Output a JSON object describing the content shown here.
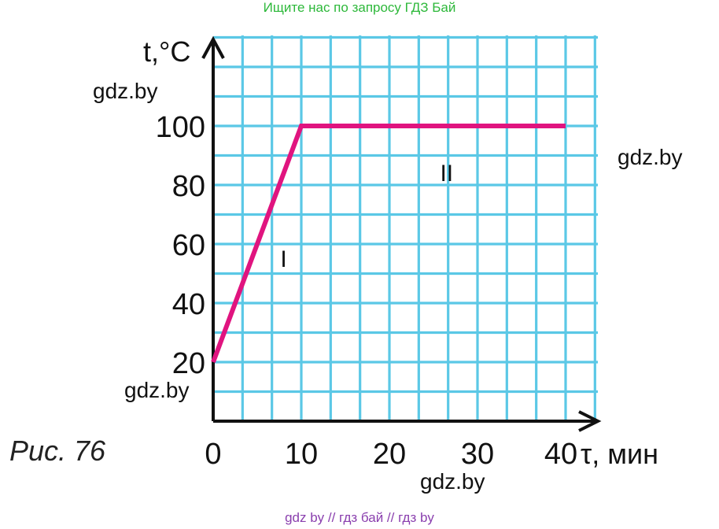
{
  "banner_top": "Ищите нас по запросу ГДЗ Бай",
  "banner_bottom": "gdz by  //  гдз бай  //  гдз by",
  "watermarks": [
    "gdz.by",
    "gdz.by",
    "gdz.by",
    "gdz.by"
  ],
  "caption": "Рис. 76",
  "colors": {
    "grid": "#5bc8e6",
    "line": "#e0147f",
    "banner": "#2db83a",
    "bottom_banner": "#8a3fae"
  },
  "chart_data": {
    "type": "line",
    "title": "",
    "xlabel": "τ, мин",
    "ylabel": "t,°C",
    "xlim": [
      0,
      40
    ],
    "ylim": [
      0,
      100
    ],
    "x_ticks": [
      0,
      10,
      20,
      30,
      40
    ],
    "y_ticks": [
      20,
      40,
      60,
      80,
      100
    ],
    "grid": true,
    "series": [
      {
        "x": [
          0,
          10,
          40
        ],
        "y": [
          20,
          100,
          100
        ]
      }
    ],
    "annotations": [
      {
        "text": "I",
        "x": 8,
        "y": 55
      },
      {
        "text": "II",
        "x": 26.5,
        "y": 84
      }
    ]
  }
}
